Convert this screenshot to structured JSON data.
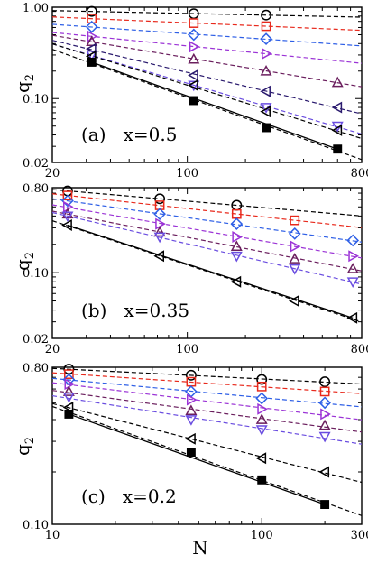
{
  "chart_data": [
    {
      "type": "scatter",
      "panel_label": "(a)   x=0.5",
      "xlabel": "",
      "ylabel": "q",
      "ylabel_sub": "2",
      "xscale": "log",
      "yscale": "log",
      "xlim": [
        20,
        800
      ],
      "ylim": [
        0.02,
        1.0
      ],
      "x_ticks": [
        {
          "v": 20,
          "t": "20"
        },
        {
          "v": 100,
          "t": "100"
        },
        {
          "v": 800,
          "t": "800"
        }
      ],
      "y_ticks": [
        {
          "v": 0.02,
          "t": "0.02"
        },
        {
          "v": 0.1,
          "t": "0.10"
        },
        {
          "v": 1.0,
          "t": "1.00"
        }
      ],
      "series": [
        {
          "marker": "circle",
          "color": "#000000",
          "x": [
            32,
            108,
            256
          ],
          "y": [
            0.9,
            0.85,
            0.82
          ]
        },
        {
          "marker": "square-open",
          "color": "#e8291c",
          "x": [
            32,
            108,
            256
          ],
          "y": [
            0.75,
            0.67,
            0.62
          ]
        },
        {
          "marker": "diamond",
          "color": "#2e5fe6",
          "x": [
            32,
            108,
            256
          ],
          "y": [
            0.61,
            0.5,
            0.45
          ]
        },
        {
          "marker": "triangle-right",
          "color": "#9b33d6",
          "x": [
            32,
            108,
            256
          ],
          "y": [
            0.48,
            0.37,
            0.31
          ]
        },
        {
          "marker": "triangle-up",
          "color": "#6b1f5e",
          "x": [
            32,
            108,
            256,
            600
          ],
          "y": [
            0.42,
            0.27,
            0.2,
            0.15
          ]
        },
        {
          "marker": "triangle-left",
          "color": "#2a1a6e",
          "x": [
            32,
            108,
            256,
            600
          ],
          "y": [
            0.35,
            0.18,
            0.12,
            0.08
          ]
        },
        {
          "marker": "triangle-down",
          "color": "#6a4de0",
          "x": [
            32,
            108,
            256,
            600
          ],
          "y": [
            0.3,
            0.14,
            0.08,
            0.05
          ]
        },
        {
          "marker": "triangle-left",
          "color": "#000000",
          "x": [
            32,
            108,
            256,
            600
          ],
          "y": [
            0.29,
            0.14,
            0.072,
            0.045
          ]
        },
        {
          "marker": "square-filled",
          "color": "#000000",
          "x": [
            32,
            108,
            256,
            600
          ],
          "y": [
            0.25,
            0.095,
            0.048,
            0.028
          ]
        }
      ]
    },
    {
      "type": "scatter",
      "panel_label": "(b)   x=0.35",
      "xlabel": "",
      "ylabel": "q",
      "ylabel_sub": "2",
      "xscale": "log",
      "yscale": "log",
      "xlim": [
        20,
        800
      ],
      "ylim": [
        0.02,
        0.8
      ],
      "x_ticks": [
        {
          "v": 20,
          "t": "20"
        },
        {
          "v": 100,
          "t": "100"
        },
        {
          "v": 800,
          "t": "800"
        }
      ],
      "y_ticks": [
        {
          "v": 0.02,
          "t": "0.02"
        },
        {
          "v": 0.1,
          "t": "0.10"
        },
        {
          "v": 0.8,
          "t": "0.80"
        }
      ],
      "series": [
        {
          "marker": "circle",
          "color": "#000000",
          "x": [
            24,
            72,
            180
          ],
          "y": [
            0.74,
            0.61,
            0.52
          ]
        },
        {
          "marker": "square-open",
          "color": "#e8291c",
          "x": [
            24,
            72,
            180,
            360
          ],
          "y": [
            0.66,
            0.52,
            0.42,
            0.36
          ]
        },
        {
          "marker": "diamond",
          "color": "#2e5fe6",
          "x": [
            24,
            72,
            180,
            360,
            720
          ],
          "y": [
            0.58,
            0.42,
            0.33,
            0.26,
            0.22
          ]
        },
        {
          "marker": "triangle-right",
          "color": "#9b33d6",
          "x": [
            24,
            72,
            180,
            360,
            720
          ],
          "y": [
            0.5,
            0.33,
            0.24,
            0.19,
            0.15
          ]
        },
        {
          "marker": "triangle-up",
          "color": "#6b1f5e",
          "x": [
            24,
            72,
            180,
            360,
            720
          ],
          "y": [
            0.42,
            0.27,
            0.19,
            0.14,
            0.11
          ]
        },
        {
          "marker": "triangle-down",
          "color": "#6a4de0",
          "x": [
            24,
            72,
            180,
            360,
            720
          ],
          "y": [
            0.4,
            0.24,
            0.15,
            0.11,
            0.08
          ]
        },
        {
          "marker": "triangle-left",
          "color": "#000000",
          "x": [
            24,
            72,
            180,
            360,
            720
          ],
          "y": [
            0.32,
            0.15,
            0.08,
            0.05,
            0.033
          ]
        }
      ]
    },
    {
      "type": "scatter",
      "panel_label": "(c)   x=0.2",
      "xlabel": "N",
      "ylabel": "q",
      "ylabel_sub": "2",
      "xscale": "log",
      "yscale": "log",
      "xlim": [
        10,
        300
      ],
      "ylim": [
        0.1,
        0.8
      ],
      "x_ticks": [
        {
          "v": 10,
          "t": "10"
        },
        {
          "v": 100,
          "t": "100"
        },
        {
          "v": 300,
          "t": "300"
        }
      ],
      "y_ticks": [
        {
          "v": 0.1,
          "t": "0.10"
        },
        {
          "v": 0.8,
          "t": "0.80"
        }
      ],
      "series": [
        {
          "marker": "circle",
          "color": "#000000",
          "x": [
            12,
            46,
            100,
            200
          ],
          "y": [
            0.78,
            0.72,
            0.68,
            0.66
          ]
        },
        {
          "marker": "square-open",
          "color": "#e8291c",
          "x": [
            12,
            46,
            100,
            200
          ],
          "y": [
            0.73,
            0.66,
            0.62,
            0.58
          ]
        },
        {
          "marker": "diamond",
          "color": "#2e5fe6",
          "x": [
            12,
            46,
            100,
            200
          ],
          "y": [
            0.68,
            0.58,
            0.53,
            0.5
          ]
        },
        {
          "marker": "triangle-right",
          "color": "#9b33d6",
          "x": [
            12,
            46,
            100,
            200
          ],
          "y": [
            0.64,
            0.52,
            0.46,
            0.43
          ]
        },
        {
          "marker": "triangle-up",
          "color": "#6b1f5e",
          "x": [
            12,
            46,
            100,
            200
          ],
          "y": [
            0.58,
            0.45,
            0.4,
            0.37
          ]
        },
        {
          "marker": "triangle-down",
          "color": "#6a4de0",
          "x": [
            12,
            46,
            100,
            200
          ],
          "y": [
            0.54,
            0.4,
            0.35,
            0.32
          ]
        },
        {
          "marker": "triangle-left",
          "color": "#000000",
          "x": [
            12,
            46,
            100,
            200
          ],
          "y": [
            0.47,
            0.31,
            0.24,
            0.2
          ]
        },
        {
          "marker": "square-filled",
          "color": "#000000",
          "x": [
            12,
            46,
            100,
            200
          ],
          "y": [
            0.43,
            0.26,
            0.18,
            0.13
          ]
        }
      ]
    }
  ]
}
